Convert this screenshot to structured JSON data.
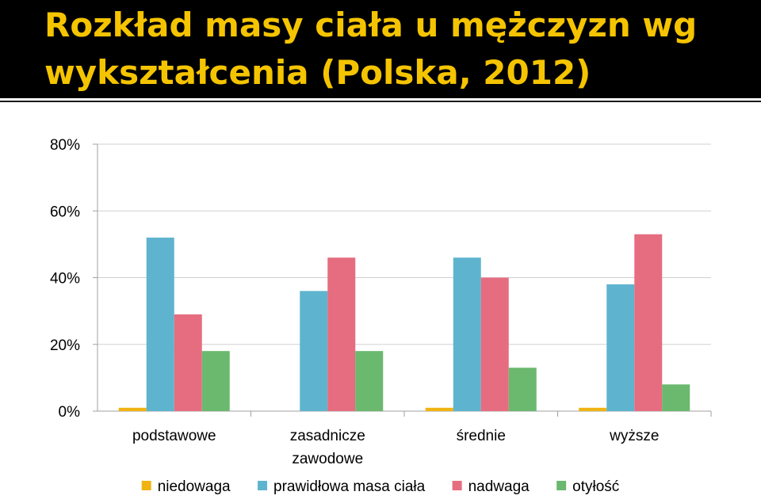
{
  "title": "Rozkład masy ciała u mężczyzn wg wykształcenia (Polska, 2012)",
  "chart_data": {
    "type": "bar",
    "categories": [
      [
        "podstawowe"
      ],
      [
        "zasadnicze",
        "zawodowe"
      ],
      [
        "średnie"
      ],
      [
        "wyższe"
      ]
    ],
    "series": [
      {
        "name": "niedowaga",
        "color": "#f0b312",
        "values": [
          1,
          0,
          1,
          1
        ]
      },
      {
        "name": "prawidłowa masa ciała",
        "color": "#5eb4cf",
        "values": [
          52,
          36,
          46,
          38
        ]
      },
      {
        "name": "nadwaga",
        "color": "#e56d7f",
        "values": [
          29,
          46,
          40,
          53
        ]
      },
      {
        "name": "otyłość",
        "color": "#6bb86f",
        "values": [
          18,
          18,
          13,
          8
        ]
      }
    ],
    "ylim": [
      0,
      80
    ],
    "yticks": [
      "0%",
      "20%",
      "40%",
      "60%",
      "80%"
    ],
    "grid": true,
    "legend_position": "bottom"
  }
}
